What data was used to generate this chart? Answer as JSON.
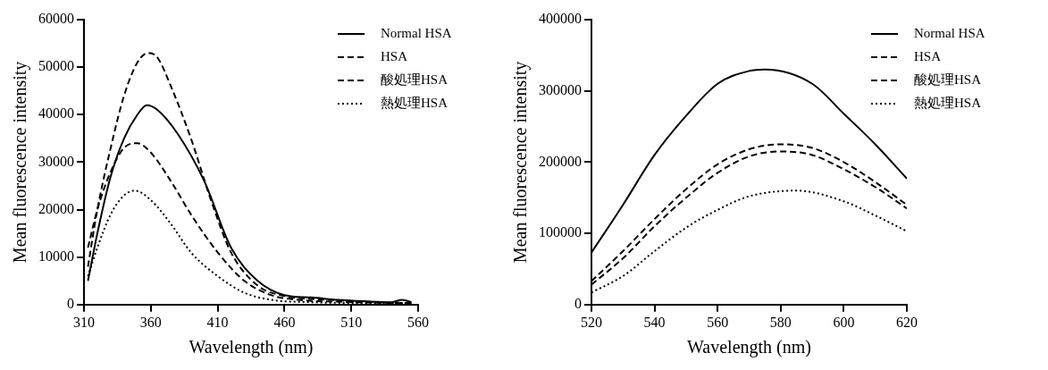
{
  "chart_data": [
    {
      "type": "line",
      "xlabel": "Wavelength (nm)",
      "ylabel": "Mean fluorescence intensity",
      "xlim": [
        310,
        560
      ],
      "xticks": [
        310,
        360,
        410,
        460,
        510,
        560
      ],
      "ylim": [
        0,
        60000
      ],
      "yticks": [
        0,
        10000,
        20000,
        30000,
        40000,
        50000,
        60000
      ],
      "grid": false,
      "legend": "top right",
      "marker": "none",
      "series": [
        {
          "name": "Normal HSA",
          "color": "#000000",
          "line_style": "solid",
          "x": [
            313,
            320,
            330,
            340,
            350,
            357,
            365,
            380,
            400,
            420,
            440,
            460,
            480,
            500,
            520,
            540,
            548,
            555
          ],
          "values": [
            5000,
            15000,
            27000,
            35000,
            40000,
            42000,
            41000,
            36000,
            26000,
            12000,
            5000,
            2000,
            1500,
            1000,
            700,
            500,
            1000,
            500
          ]
        },
        {
          "name": "HSA",
          "color": "#000000",
          "line_style": "dashed",
          "x": [
            313,
            320,
            330,
            340,
            350,
            358,
            365,
            375,
            390,
            405,
            420,
            440,
            460,
            480,
            500,
            520,
            540,
            555
          ],
          "values": [
            8000,
            20000,
            33000,
            44000,
            51000,
            53000,
            52000,
            46000,
            35000,
            22000,
            11000,
            4000,
            1800,
            1200,
            900,
            600,
            400,
            300
          ]
        },
        {
          "name": "酸処理HSA",
          "color": "#000000",
          "line_style": "dashed",
          "x": [
            313,
            320,
            330,
            340,
            350,
            360,
            375,
            390,
            410,
            430,
            450,
            470,
            500,
            530,
            555
          ],
          "values": [
            12000,
            20000,
            28000,
            33000,
            34000,
            32000,
            26000,
            19000,
            11000,
            5000,
            2000,
            1000,
            600,
            400,
            300
          ]
        },
        {
          "name": "熱処理HSA",
          "color": "#000000",
          "line_style": "dotted",
          "x": [
            313,
            320,
            330,
            340,
            348,
            360,
            375,
            390,
            410,
            430,
            450,
            480,
            520,
            555
          ],
          "values": [
            6000,
            12000,
            19000,
            23000,
            24000,
            22000,
            17000,
            11000,
            6000,
            2500,
            1000,
            500,
            300,
            200
          ]
        }
      ]
    },
    {
      "type": "line",
      "xlabel": "Wavelength (nm)",
      "ylabel": "Mean fluorescence intensity",
      "xlim": [
        520,
        620
      ],
      "xticks": [
        520,
        540,
        560,
        580,
        600,
        620
      ],
      "ylim": [
        0,
        400000
      ],
      "yticks": [
        0,
        100000,
        200000,
        300000,
        400000
      ],
      "grid": false,
      "legend": "top right",
      "marker": "none",
      "series": [
        {
          "name": "Normal HSA",
          "color": "#000000",
          "line_style": "solid",
          "x": [
            520,
            530,
            540,
            550,
            560,
            570,
            575,
            590,
            600,
            610,
            620
          ],
          "values": [
            73000,
            140000,
            210000,
            265000,
            310000,
            328000,
            330000,
            310000,
            268000,
            225000,
            177000
          ]
        },
        {
          "name": "HSA",
          "color": "#000000",
          "line_style": "dashed",
          "x": [
            520,
            530,
            540,
            550,
            560,
            570,
            580,
            590,
            600,
            610,
            620
          ],
          "values": [
            28000,
            65000,
            110000,
            150000,
            185000,
            208000,
            215000,
            210000,
            190000,
            165000,
            135000
          ]
        },
        {
          "name": "酸処理HSA",
          "color": "#000000",
          "line_style": "dashed",
          "x": [
            520,
            530,
            540,
            550,
            560,
            570,
            580,
            590,
            600,
            610,
            620
          ],
          "values": [
            33000,
            75000,
            120000,
            162000,
            197000,
            218000,
            225000,
            220000,
            200000,
            172000,
            140000
          ]
        },
        {
          "name": "熱処理HSA",
          "color": "#000000",
          "line_style": "dotted",
          "x": [
            520,
            530,
            540,
            550,
            560,
            570,
            585,
            600,
            610,
            620
          ],
          "values": [
            17000,
            40000,
            75000,
            108000,
            133000,
            152000,
            160000,
            145000,
            125000,
            103000
          ]
        }
      ]
    }
  ]
}
